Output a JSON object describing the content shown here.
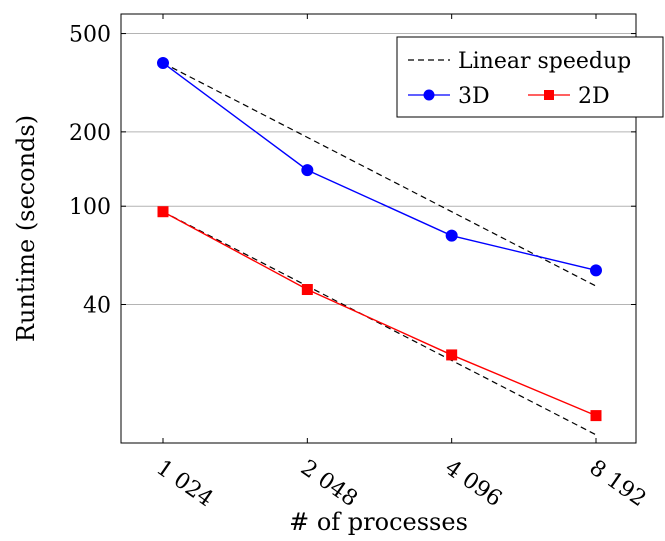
{
  "chart_data": {
    "type": "line",
    "x_scale": "log2",
    "y_scale": "log10",
    "x": [
      1024,
      2048,
      4096,
      8192
    ],
    "x_tick_labels": [
      "1 024",
      "2 048",
      "4 096",
      "8 192"
    ],
    "y_ticks": [
      40,
      100,
      200,
      500
    ],
    "y_tick_labels": [
      "40",
      "100",
      "200",
      "500"
    ],
    "ylim": [
      11,
      600
    ],
    "xlabel": "# of processes",
    "ylabel": "Runtime (seconds)",
    "grid": "horizontal",
    "legend_position": "top-right",
    "series": [
      {
        "name": "3D",
        "values": [
          380,
          140,
          76,
          55
        ],
        "color": "#0000ff",
        "marker": "circle",
        "line_style": "solid"
      },
      {
        "name": "2D",
        "values": [
          95,
          46,
          25,
          14.2
        ],
        "color": "#ff0000",
        "marker": "square",
        "line_style": "solid"
      }
    ],
    "reference_lines": [
      {
        "name": "Linear speedup",
        "values": [
          380,
          190,
          95,
          47.5
        ],
        "color": "#000000",
        "line_style": "dashed"
      },
      {
        "name": "",
        "values": [
          95,
          47.5,
          23.75,
          11.875
        ],
        "color": "#000000",
        "line_style": "dashed"
      }
    ]
  }
}
